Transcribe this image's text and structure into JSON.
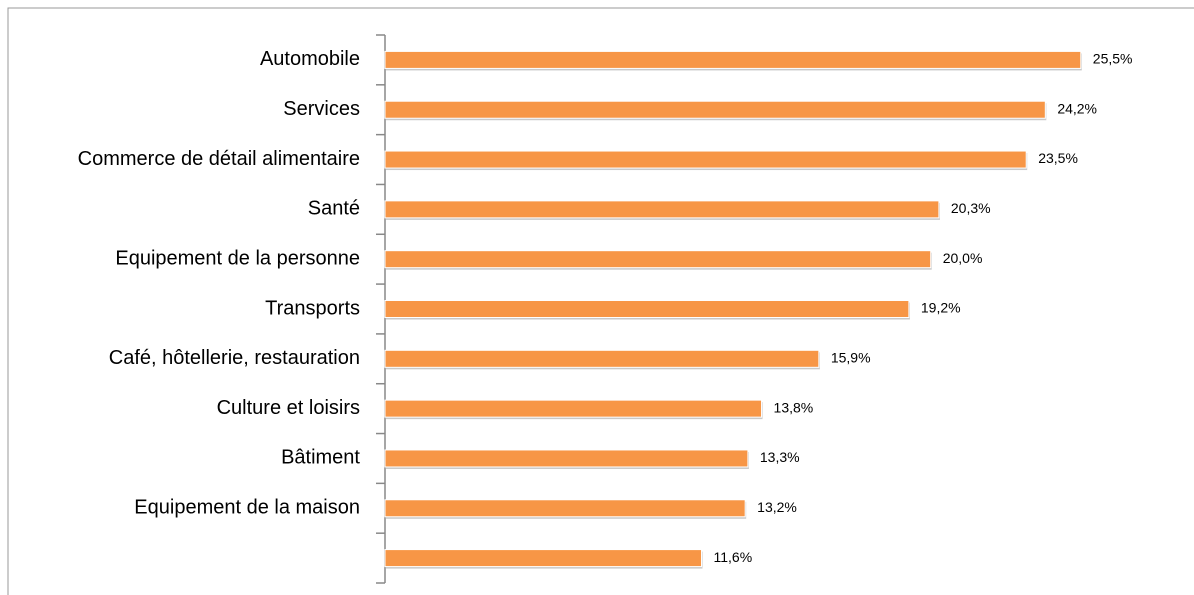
{
  "chart_data": {
    "type": "bar",
    "orientation": "horizontal",
    "categories": [
      "Automobile",
      "Services",
      "Commerce de détail alimentaire",
      "Santé",
      "Equipement de la personne",
      "Transports",
      "Café, hôtellerie, restauration",
      "Culture et loisirs",
      "Bâtiment",
      "Equipement de la maison",
      null
    ],
    "values": [
      25.5,
      24.2,
      23.5,
      20.3,
      20.0,
      19.2,
      15.9,
      13.8,
      13.3,
      13.2,
      11.6
    ],
    "value_labels": [
      "25,5%",
      "24,2%",
      "23,5%",
      "20,3%",
      "20,0%",
      "19,2%",
      "15,9%",
      "13,8%",
      "13,3%",
      "13,2%",
      "11,6%"
    ],
    "color": "#f79646",
    "xlim": [
      0,
      28
    ]
  }
}
